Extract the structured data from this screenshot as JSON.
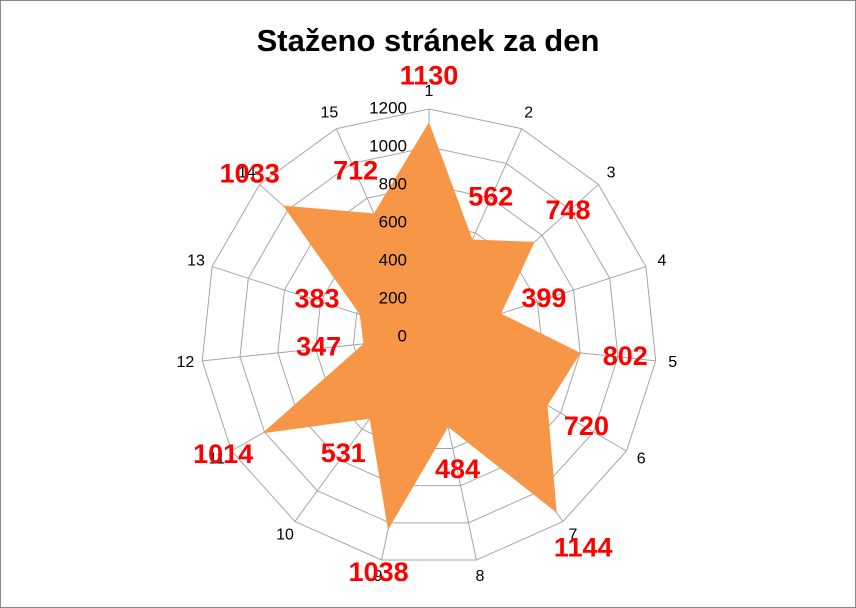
{
  "chart_data": {
    "type": "radar",
    "title": "Staženo stránek za den",
    "categories": [
      "1",
      "2",
      "3",
      "4",
      "5",
      "6",
      "7",
      "8",
      "9",
      "10",
      "11",
      "12",
      "13",
      "14",
      "15"
    ],
    "values": [
      1130,
      562,
      748,
      399,
      802,
      720,
      1144,
      484,
      1038,
      531,
      1014,
      347,
      383,
      1033,
      712
    ],
    "color": "#f79646",
    "value_label_color": "#ff0000",
    "ylim": [
      0,
      1200
    ],
    "yticks": [
      0,
      200,
      400,
      600,
      800,
      1000,
      1200
    ],
    "grid": true
  }
}
